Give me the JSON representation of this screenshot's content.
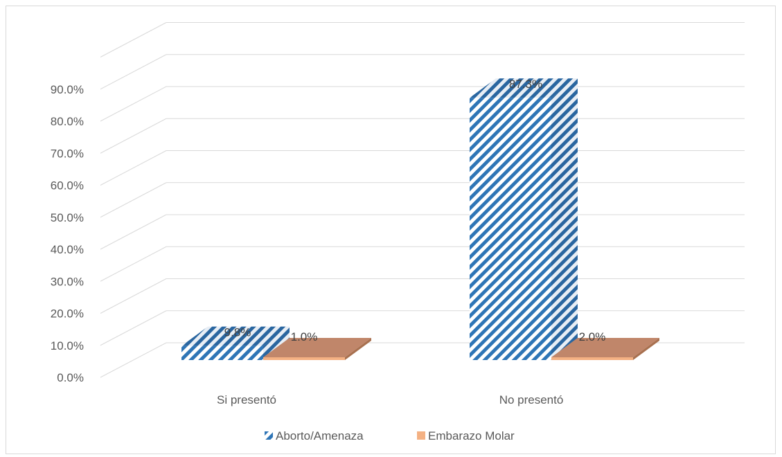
{
  "chart_data": {
    "type": "bar",
    "categories": [
      "Si presentó",
      "No presentó"
    ],
    "series": [
      {
        "name": "Aborto/Amenaza",
        "values": [
          9.8,
          87.3
        ],
        "labels": [
          "9.8%",
          "87.3%"
        ],
        "color": "#2e75b6",
        "pattern": "diagonal-stripes"
      },
      {
        "name": "Embarazo Molar",
        "values": [
          1.0,
          2.0
        ],
        "labels": [
          "1.0%",
          "2.0%"
        ],
        "color": "#f4b183"
      }
    ],
    "yticks": [
      "0.0%",
      "10.0%",
      "20.0%",
      "30.0%",
      "40.0%",
      "50.0%",
      "60.0%",
      "70.0%",
      "80.0%",
      "90.0%"
    ],
    "ylim": [
      0,
      100
    ],
    "grid": true,
    "style": "3d-column",
    "legend_position": "bottom"
  }
}
